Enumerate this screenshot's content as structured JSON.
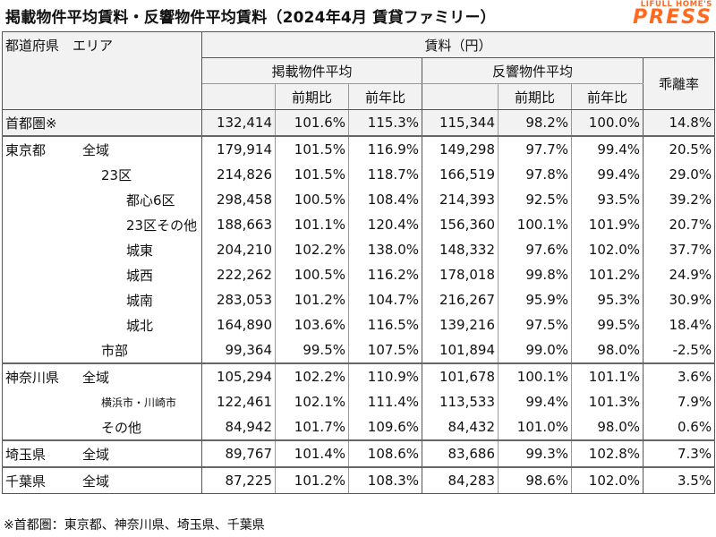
{
  "title": "掲載物件平均賃料・反響物件平均賃料（2024年4月 賃貸ファミリー）",
  "brand": {
    "top": "LIFULL HOME'S",
    "main": "PRESS"
  },
  "header": {
    "area": "都道府県　エリア",
    "rent": "賃料（円）",
    "listed": "掲載物件平均",
    "response": "反響物件平均",
    "gap": "乖離率",
    "qoq": "前期比",
    "yoy": "前年比"
  },
  "rows": [
    {
      "pref": "首都圏※",
      "area": "",
      "listed": "132,414",
      "listed_qoq": "101.6%",
      "listed_yoy": "115.3%",
      "resp": "115,344",
      "resp_qoq": "98.2%",
      "resp_yoy": "100.0%",
      "gap": "14.8%"
    },
    {
      "pref": "東京都",
      "area": "全域",
      "listed": "179,914",
      "listed_qoq": "101.5%",
      "listed_yoy": "116.9%",
      "resp": "149,298",
      "resp_qoq": "97.7%",
      "resp_yoy": "99.4%",
      "gap": "20.5%"
    },
    {
      "pref": "",
      "area": "23区",
      "listed": "214,826",
      "listed_qoq": "101.5%",
      "listed_yoy": "118.7%",
      "resp": "166,519",
      "resp_qoq": "97.8%",
      "resp_yoy": "99.4%",
      "gap": "29.0%"
    },
    {
      "pref": "",
      "area": "都心6区",
      "listed": "298,458",
      "listed_qoq": "100.5%",
      "listed_yoy": "108.4%",
      "resp": "214,393",
      "resp_qoq": "92.5%",
      "resp_yoy": "93.5%",
      "gap": "39.2%"
    },
    {
      "pref": "",
      "area": "23区その他",
      "listed": "188,663",
      "listed_qoq": "101.1%",
      "listed_yoy": "120.4%",
      "resp": "156,360",
      "resp_qoq": "100.1%",
      "resp_yoy": "101.9%",
      "gap": "20.7%"
    },
    {
      "pref": "",
      "area": "城東",
      "listed": "204,210",
      "listed_qoq": "102.2%",
      "listed_yoy": "138.0%",
      "resp": "148,332",
      "resp_qoq": "97.6%",
      "resp_yoy": "102.0%",
      "gap": "37.7%"
    },
    {
      "pref": "",
      "area": "城西",
      "listed": "222,262",
      "listed_qoq": "100.5%",
      "listed_yoy": "116.2%",
      "resp": "178,018",
      "resp_qoq": "99.8%",
      "resp_yoy": "101.2%",
      "gap": "24.9%"
    },
    {
      "pref": "",
      "area": "城南",
      "listed": "283,053",
      "listed_qoq": "101.2%",
      "listed_yoy": "104.7%",
      "resp": "216,267",
      "resp_qoq": "95.9%",
      "resp_yoy": "95.3%",
      "gap": "30.9%"
    },
    {
      "pref": "",
      "area": "城北",
      "listed": "164,890",
      "listed_qoq": "103.6%",
      "listed_yoy": "116.5%",
      "resp": "139,216",
      "resp_qoq": "97.5%",
      "resp_yoy": "99.5%",
      "gap": "18.4%"
    },
    {
      "pref": "",
      "area": "市部",
      "listed": "99,364",
      "listed_qoq": "99.5%",
      "listed_yoy": "107.5%",
      "resp": "101,894",
      "resp_qoq": "99.0%",
      "resp_yoy": "98.0%",
      "gap": "-2.5%"
    },
    {
      "pref": "神奈川県",
      "area": "全域",
      "listed": "105,294",
      "listed_qoq": "102.2%",
      "listed_yoy": "110.9%",
      "resp": "101,678",
      "resp_qoq": "100.1%",
      "resp_yoy": "101.1%",
      "gap": "3.6%"
    },
    {
      "pref": "",
      "area": "横浜市・川崎市",
      "listed": "122,461",
      "listed_qoq": "102.1%",
      "listed_yoy": "111.4%",
      "resp": "113,533",
      "resp_qoq": "99.4%",
      "resp_yoy": "101.3%",
      "gap": "7.9%"
    },
    {
      "pref": "",
      "area": "その他",
      "listed": "84,942",
      "listed_qoq": "101.7%",
      "listed_yoy": "109.6%",
      "resp": "84,432",
      "resp_qoq": "101.0%",
      "resp_yoy": "98.0%",
      "gap": "0.6%"
    },
    {
      "pref": "埼玉県",
      "area": "全域",
      "listed": "89,767",
      "listed_qoq": "101.4%",
      "listed_yoy": "108.6%",
      "resp": "83,686",
      "resp_qoq": "99.3%",
      "resp_yoy": "102.8%",
      "gap": "7.3%"
    },
    {
      "pref": "千葉県",
      "area": "全域",
      "listed": "87,225",
      "listed_qoq": "101.2%",
      "listed_yoy": "108.3%",
      "resp": "84,283",
      "resp_qoq": "98.6%",
      "resp_yoy": "102.0%",
      "gap": "3.5%"
    }
  ],
  "footnote": "※首都圏：東京都、神奈川県、埼玉県、千葉県"
}
